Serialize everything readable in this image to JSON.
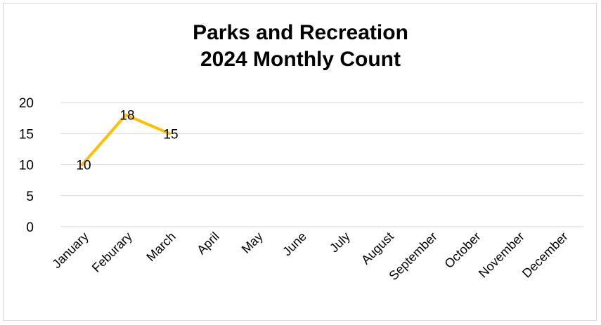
{
  "chart_data": {
    "type": "line",
    "title_lines": [
      "Parks and Recreation",
      "2024 Monthly Count"
    ],
    "categories": [
      "January",
      "Feburary",
      "March",
      "April",
      "May",
      "June",
      "July",
      "August",
      "September",
      "October",
      "November",
      "December"
    ],
    "series": [
      {
        "values": [
          10,
          18,
          15,
          null,
          null,
          null,
          null,
          null,
          null,
          null,
          null,
          null
        ],
        "color": "#FFC000"
      }
    ],
    "data_labels": [
      "10",
      "18",
      "15"
    ],
    "ylim": [
      0,
      20
    ],
    "yticks": [
      0,
      5,
      10,
      15,
      20
    ],
    "grid": true,
    "legend": "none",
    "xlabel": "",
    "ylabel": ""
  }
}
